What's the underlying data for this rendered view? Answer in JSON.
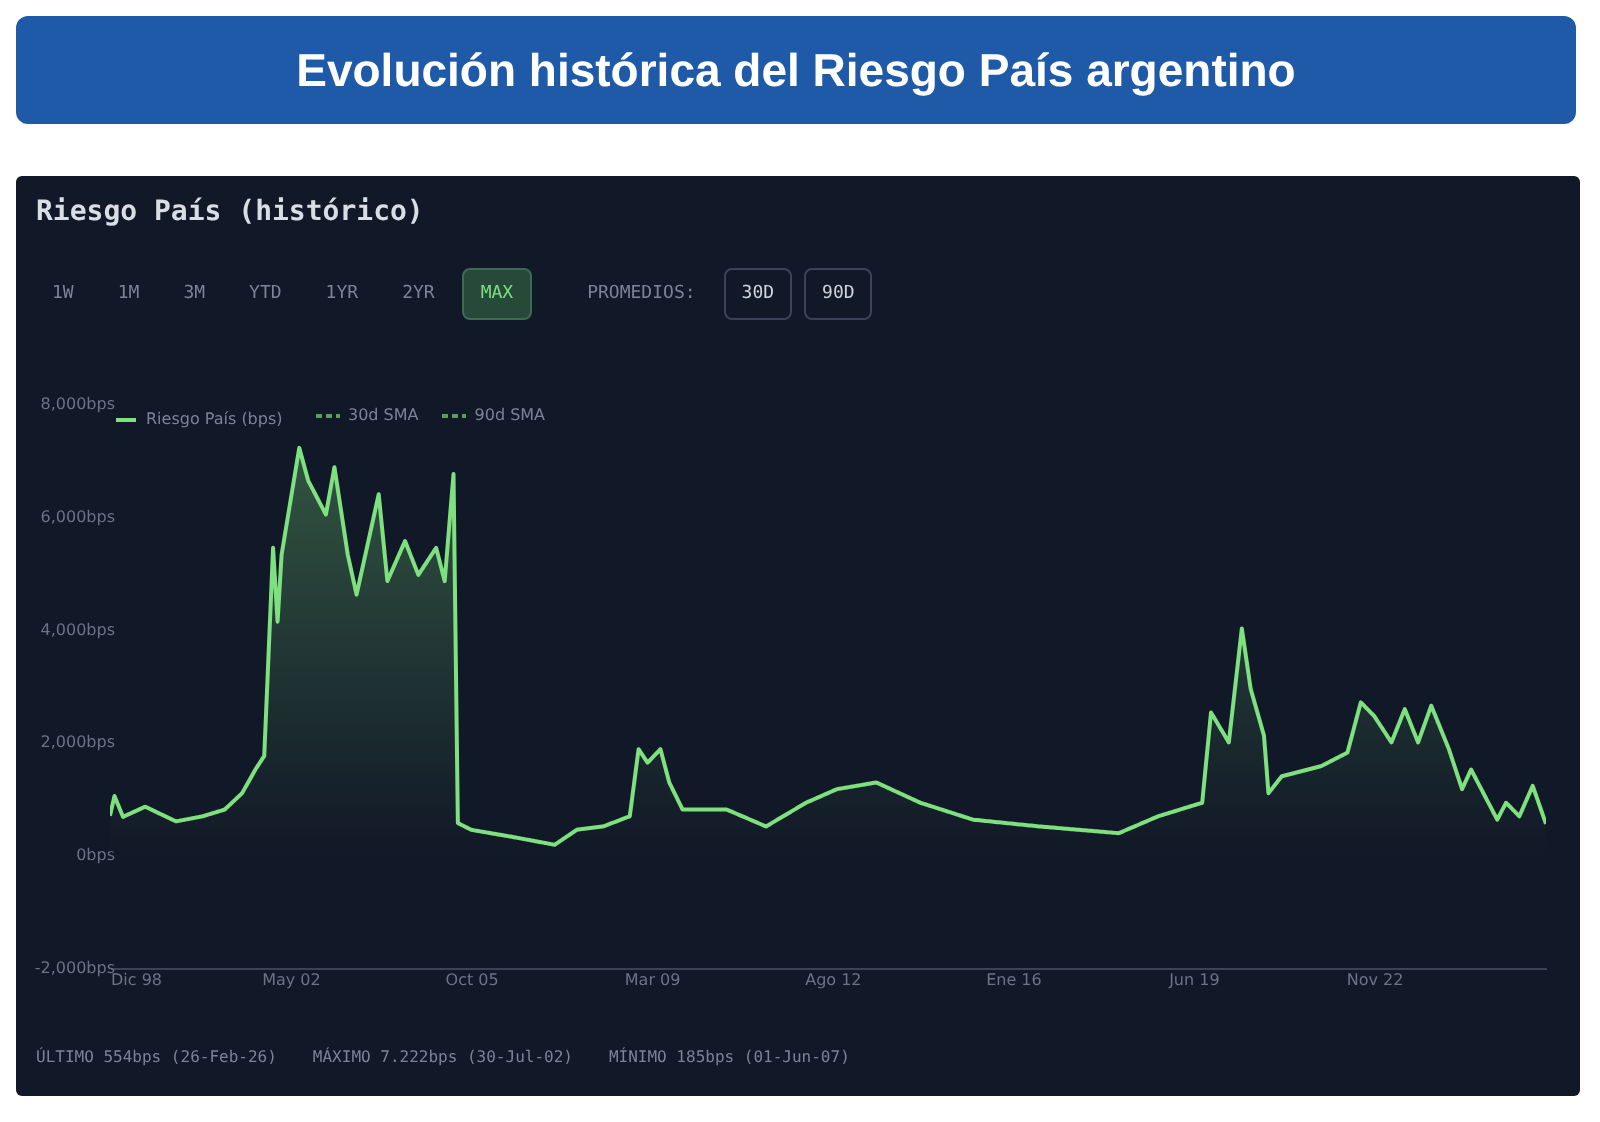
{
  "chart_data": {
    "type": "area",
    "title": "Evolución histórica del Riesgo País argentino",
    "subtitle": "Riesgo País (histórico)",
    "x": [
      "1998-12",
      "1999-01",
      "1999-03",
      "1999-08",
      "2000-03",
      "2000-09",
      "2001-02",
      "2001-06",
      "2001-09",
      "2001-11",
      "2002-01",
      "2002-02",
      "2002-03",
      "2002-07",
      "2002-09",
      "2003-01",
      "2003-03",
      "2003-06",
      "2003-08",
      "2004-01",
      "2004-03",
      "2004-07",
      "2004-10",
      "2005-02",
      "2005-04",
      "2005-06",
      "2005-07",
      "2005-10",
      "2006-07",
      "2007-05",
      "2007-10",
      "2008-04",
      "2008-10",
      "2008-12",
      "2009-02",
      "2009-05",
      "2009-07",
      "2009-10",
      "2010-08",
      "2011-05",
      "2012-02",
      "2012-09",
      "2013-06",
      "2014-04",
      "2015-04",
      "2016-07",
      "2018-01",
      "2018-10",
      "2019-08",
      "2019-10",
      "2020-02",
      "2020-05",
      "2020-07",
      "2020-10",
      "2020-11",
      "2021-02",
      "2021-11",
      "2022-05",
      "2022-08",
      "2022-11",
      "2023-03",
      "2023-06",
      "2023-09",
      "2023-12",
      "2024-04",
      "2024-07",
      "2024-09",
      "2025-03",
      "2025-05",
      "2025-08",
      "2025-11",
      "2026-02"
    ],
    "series": [
      {
        "name": "Riesgo País (bps)",
        "color": "#7ee07e",
        "values": [
          700,
          1050,
          680,
          860,
          600,
          690,
          810,
          1100,
          1520,
          1760,
          5450,
          4140,
          5330,
          7222,
          6640,
          6040,
          6880,
          5330,
          4620,
          6400,
          4860,
          5570,
          4970,
          5450,
          4860,
          6760,
          570,
          450,
          330,
          185,
          450,
          510,
          690,
          1880,
          1640,
          1880,
          1290,
          810,
          810,
          510,
          930,
          1170,
          1290,
          930,
          630,
          510,
          390,
          690,
          930,
          2530,
          2000,
          4020,
          2950,
          2120,
          1100,
          1400,
          1580,
          1820,
          2710,
          2470,
          2000,
          2590,
          2000,
          2650,
          1880,
          1170,
          1520,
          630,
          930,
          690,
          1230,
          554
        ]
      }
    ],
    "xlim": [
      "1998-12",
      "2026-02"
    ],
    "xticks": [
      {
        "value": "1998-12",
        "label": "Dic 98"
      },
      {
        "value": "2002-05",
        "label": "May 02"
      },
      {
        "value": "2005-10",
        "label": "Oct 05"
      },
      {
        "value": "2009-03",
        "label": "Mar 09"
      },
      {
        "value": "2012-08",
        "label": "Ago 12"
      },
      {
        "value": "2016-01",
        "label": "Ene 16"
      },
      {
        "value": "2019-06",
        "label": "Jun 19"
      },
      {
        "value": "2022-11",
        "label": "Nov 22"
      }
    ],
    "ylim": [
      -2000,
      8000
    ],
    "yticks": [
      {
        "value": -2000,
        "label": "-2,000bps"
      },
      {
        "value": 0,
        "label": "0bps"
      },
      {
        "value": 2000,
        "label": "2,000bps"
      },
      {
        "value": 4000,
        "label": "4,000bps"
      },
      {
        "value": 6000,
        "label": "6,000bps"
      },
      {
        "value": 8000,
        "label": "8,000bps"
      }
    ],
    "legend": "top left",
    "marker": "none",
    "line_style": "solid",
    "annotations": [
      "1W",
      "1M",
      "3M",
      "YTD",
      "1YR",
      "2YR",
      "MAX",
      "PROMEDIOS:",
      "30D",
      "90D",
      "30d SMA",
      "90d SMA",
      "ÚLTIMO 554bps (26-Feb-26)",
      "MÁXIMO 7.222bps (30-Jul-02)",
      "MÍNIMO 185bps (01-Jun-07)"
    ]
  }
}
